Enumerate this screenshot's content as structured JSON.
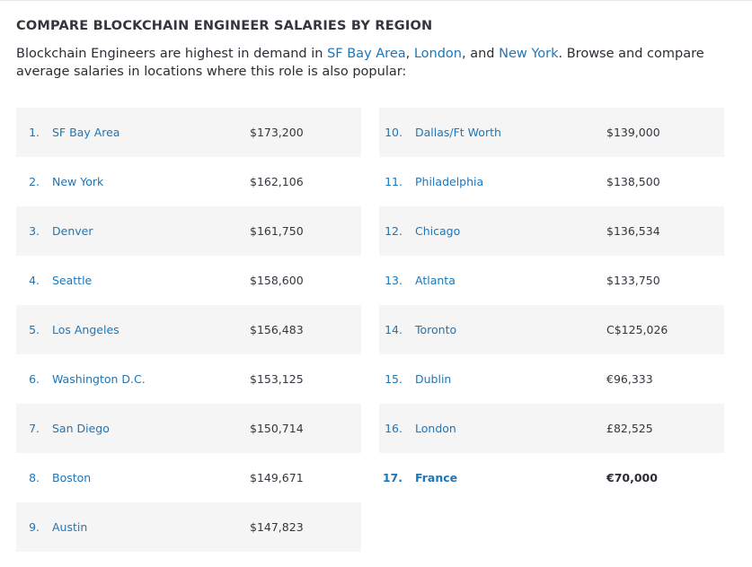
{
  "heading": "COMPARE BLOCKCHAIN ENGINEER SALARIES BY REGION",
  "intro": {
    "prefix": "Blockchain Engineers are highest in demand in ",
    "link1": "SF Bay Area",
    "sep1": ", ",
    "link2": "London",
    "sep2": ", and ",
    "link3": "New York",
    "suffix": ". Browse and compare average salaries in locations where this role is also popular:"
  },
  "left_rows": [
    {
      "rank": "1.",
      "city": "SF Bay Area",
      "salary": "$173,200"
    },
    {
      "rank": "2.",
      "city": "New York",
      "salary": "$162,106"
    },
    {
      "rank": "3.",
      "city": "Denver",
      "salary": "$161,750"
    },
    {
      "rank": "4.",
      "city": "Seattle",
      "salary": "$158,600"
    },
    {
      "rank": "5.",
      "city": "Los Angeles",
      "salary": "$156,483"
    },
    {
      "rank": "6.",
      "city": "Washington D.C.",
      "salary": "$153,125"
    },
    {
      "rank": "7.",
      "city": "San Diego",
      "salary": "$150,714"
    },
    {
      "rank": "8.",
      "city": "Boston",
      "salary": "$149,671"
    },
    {
      "rank": "9.",
      "city": "Austin",
      "salary": "$147,823"
    }
  ],
  "right_rows": [
    {
      "rank": "10.",
      "city": "Dallas/Ft Worth",
      "salary": "$139,000"
    },
    {
      "rank": "11.",
      "city": "Philadelphia",
      "salary": "$138,500"
    },
    {
      "rank": "12.",
      "city": "Chicago",
      "salary": "$136,534"
    },
    {
      "rank": "13.",
      "city": "Atlanta",
      "salary": "$133,750"
    },
    {
      "rank": "14.",
      "city": "Toronto",
      "salary": "C$125,026"
    },
    {
      "rank": "15.",
      "city": "Dublin",
      "salary": "€96,333"
    },
    {
      "rank": "16.",
      "city": "London",
      "salary": "£82,525"
    },
    {
      "rank": "17.",
      "city": "France",
      "salary": "€70,000"
    }
  ],
  "colors": {
    "link": "#1d76b8",
    "row_shade": "#f5f5f5",
    "text": "#2b2e35"
  }
}
